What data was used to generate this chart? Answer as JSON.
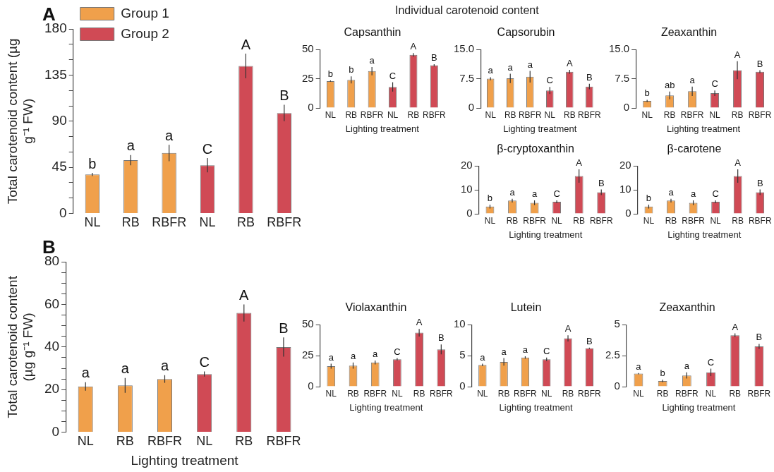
{
  "chart_data": [
    {
      "type": "bar",
      "title": "A",
      "ylabel": "Total carotenoid content (µg g⁻¹ FW)",
      "categories": [
        "NL",
        "RB",
        "RBFR",
        "NL",
        "RB",
        "RBFR"
      ],
      "ylim": [
        0,
        180
      ],
      "yticks": [
        0,
        {
          "value": 15,
          "label": null
        },
        {
          "value": 30,
          "label": null
        },
        45,
        {
          "value": 60,
          "label": null
        },
        {
          "value": 75,
          "label": null
        },
        90,
        {
          "value": 105,
          "label": null
        },
        {
          "value": 120,
          "label": null
        },
        135,
        {
          "value": 150,
          "label": null
        },
        {
          "value": 165,
          "label": null
        },
        180
      ],
      "grid": false,
      "legend": "top left",
      "series": [
        {
          "name": "Group 1",
          "color": "#f0a04b",
          "values": [
            38,
            52,
            59,
            null,
            null,
            null
          ],
          "errors": [
            1.5,
            5,
            8,
            null,
            null,
            null
          ],
          "value_labels": [
            "b",
            "a",
            "a",
            null,
            null,
            null
          ]
        },
        {
          "name": "Group 2",
          "color": "#d04a55",
          "values": [
            null,
            null,
            null,
            47,
            144,
            98
          ],
          "errors": [
            null,
            null,
            null,
            7,
            12,
            8
          ],
          "value_labels": [
            null,
            null,
            null,
            "C",
            "A",
            "B"
          ]
        }
      ]
    },
    {
      "type": "bar",
      "title": "Capsanthin",
      "xlabel": "Lighting treatment",
      "annotations": [
        "Individual carotenoid content"
      ],
      "categories": [
        "NL",
        "RB",
        "RBFR",
        "NL",
        "RB",
        "RBFR"
      ],
      "ylim": [
        0,
        50
      ],
      "yticks": [
        0,
        25,
        50
      ],
      "grid": false,
      "series": [
        {
          "color": "#f0a04b",
          "values": [
            23,
            24,
            31.5,
            null,
            null,
            null
          ],
          "errors": [
            0.5,
            3,
            3.5,
            null,
            null,
            null
          ],
          "value_labels": [
            "b",
            "b",
            "a",
            null,
            null,
            null
          ]
        },
        {
          "color": "#d04a55",
          "values": [
            null,
            null,
            null,
            18,
            45.5,
            36.5
          ],
          "errors": [
            null,
            null,
            null,
            4,
            1.5,
            1
          ],
          "value_labels": [
            null,
            null,
            null,
            "C",
            "A",
            "B"
          ]
        }
      ]
    },
    {
      "type": "bar",
      "title": "Capsorubin",
      "xlabel": "Lighting treatment",
      "categories": [
        "NL",
        "RB",
        "RBFR",
        "NL",
        "RB",
        "RBFR"
      ],
      "ylim": [
        0,
        15
      ],
      "yticks": [
        0,
        7.5,
        {
          "value": 15,
          "label": "15.0"
        }
      ],
      "grid": false,
      "series": [
        {
          "color": "#f0a04b",
          "values": [
            7.5,
            7.6,
            8,
            null,
            null,
            null
          ],
          "errors": [
            0.4,
            1.2,
            1.5,
            null,
            null,
            null
          ],
          "value_labels": [
            "a",
            "a",
            "a",
            null,
            null,
            null
          ]
        },
        {
          "color": "#d04a55",
          "values": [
            null,
            null,
            null,
            4.5,
            9.3,
            5.5
          ],
          "errors": [
            null,
            null,
            null,
            0.9,
            0.5,
            0.7
          ],
          "value_labels": [
            null,
            null,
            null,
            "C",
            "A",
            "B"
          ]
        }
      ]
    },
    {
      "type": "bar",
      "title": "Zeaxanthin",
      "xlabel": "Lighting treatment",
      "categories": [
        "NL",
        "RB",
        "RBFR",
        "NL",
        "RB",
        "RBFR"
      ],
      "ylim": [
        0,
        15
      ],
      "yticks": [
        0,
        7.5,
        {
          "value": 15,
          "label": "15.0"
        }
      ],
      "grid": false,
      "series": [
        {
          "color": "#f0a04b",
          "values": [
            1.8,
            3.2,
            4.3,
            null,
            null,
            null
          ],
          "errors": [
            0.3,
            1,
            1.2,
            null,
            null,
            null
          ],
          "value_labels": [
            "b",
            "ab",
            "a",
            null,
            null,
            null
          ]
        },
        {
          "color": "#d04a55",
          "values": [
            null,
            null,
            null,
            3.8,
            9.7,
            9.3
          ],
          "errors": [
            null,
            null,
            null,
            0.7,
            2.3,
            0.4
          ],
          "value_labels": [
            null,
            null,
            null,
            "C",
            "A",
            "B"
          ]
        }
      ]
    },
    {
      "type": "bar",
      "title": "β-cryptoxanthin",
      "xlabel": "Lighting treatment",
      "categories": [
        "NL",
        "RB",
        "RBFR",
        "NL",
        "RB",
        "RBFR"
      ],
      "ylim": [
        0,
        20
      ],
      "yticks": [
        0,
        10,
        20
      ],
      "grid": false,
      "series": [
        {
          "color": "#f0a04b",
          "values": [
            3,
            5.5,
            4.6,
            null,
            null,
            null
          ],
          "errors": [
            0.8,
            0.8,
            1,
            null,
            null,
            null
          ],
          "value_labels": [
            "b",
            "a",
            "a",
            null,
            null,
            null
          ]
        },
        {
          "color": "#d04a55",
          "values": [
            null,
            null,
            null,
            5,
            15.8,
            9
          ],
          "errors": [
            null,
            null,
            null,
            0.6,
            2.8,
            1.2
          ],
          "value_labels": [
            null,
            null,
            null,
            "C",
            "A",
            "B"
          ]
        }
      ]
    },
    {
      "type": "bar",
      "title": "β-carotene",
      "xlabel": "Lighting treatment",
      "categories": [
        "NL",
        "RB",
        "RBFR",
        "NL",
        "RB",
        "RBFR"
      ],
      "ylim": [
        0,
        20
      ],
      "yticks": [
        0,
        10,
        20
      ],
      "grid": false,
      "series": [
        {
          "color": "#f0a04b",
          "values": [
            3,
            5.5,
            4.6,
            null,
            null,
            null
          ],
          "errors": [
            0.8,
            0.8,
            1,
            null,
            null,
            null
          ],
          "value_labels": [
            "b",
            "a",
            "a",
            null,
            null,
            null
          ]
        },
        {
          "color": "#d04a55",
          "values": [
            null,
            null,
            null,
            5,
            15.8,
            9
          ],
          "errors": [
            null,
            null,
            null,
            0.6,
            2.8,
            1.2
          ],
          "value_labels": [
            null,
            null,
            null,
            "C",
            "A",
            "B"
          ]
        }
      ]
    },
    {
      "type": "bar",
      "title": "B",
      "xlabel": "Lighting treatment",
      "ylabel": "Total carotenoid content (µg g⁻¹ FW)",
      "categories": [
        "NL",
        "RB",
        "RBFR",
        "NL",
        "RB",
        "RBFR"
      ],
      "ylim": [
        0,
        80
      ],
      "yticks": [
        0,
        {
          "value": 5,
          "label": null
        },
        {
          "value": 10,
          "label": null
        },
        {
          "value": 15,
          "label": null
        },
        20,
        {
          "value": 25,
          "label": null
        },
        {
          "value": 30,
          "label": null
        },
        {
          "value": 35,
          "label": null
        },
        40,
        {
          "value": 45,
          "label": null
        },
        {
          "value": 50,
          "label": null
        },
        {
          "value": 55,
          "label": null
        },
        60,
        {
          "value": 65,
          "label": null
        },
        {
          "value": 70,
          "label": null
        },
        {
          "value": 75,
          "label": null
        },
        80
      ],
      "grid": false,
      "series": [
        {
          "color": "#f0a04b",
          "values": [
            21.5,
            22,
            25,
            null,
            null,
            null
          ],
          "errors": [
            2,
            3.5,
            1.8,
            null,
            null,
            null
          ],
          "value_labels": [
            "a",
            "a",
            "a",
            null,
            null,
            null
          ]
        },
        {
          "color": "#d04a55",
          "values": [
            null,
            null,
            null,
            27.3,
            56,
            40
          ],
          "errors": [
            null,
            null,
            null,
            1.2,
            4,
            4.5
          ],
          "value_labels": [
            null,
            null,
            null,
            "C",
            "A",
            "B"
          ]
        }
      ]
    },
    {
      "type": "bar",
      "title": "Violaxanthin",
      "xlabel": "Lighting treatment",
      "categories": [
        "NL",
        "RB",
        "RBFR",
        "NL",
        "RB",
        "RBFR"
      ],
      "ylim": [
        0,
        50
      ],
      "yticks": [
        0,
        25,
        50
      ],
      "grid": false,
      "series": [
        {
          "color": "#f0a04b",
          "values": [
            16.5,
            17,
            19.5,
            null,
            null,
            null
          ],
          "errors": [
            2,
            2.5,
            1.5,
            null,
            null,
            null
          ],
          "value_labels": [
            "a",
            "a",
            "a",
            null,
            null,
            null
          ]
        },
        {
          "color": "#d04a55",
          "values": [
            null,
            null,
            null,
            22,
            43.5,
            30
          ],
          "errors": [
            null,
            null,
            null,
            1,
            3,
            4
          ],
          "value_labels": [
            null,
            null,
            null,
            "C",
            "A",
            "B"
          ]
        }
      ]
    },
    {
      "type": "bar",
      "title": "Lutein",
      "xlabel": "Lighting treatment",
      "categories": [
        "NL",
        "RB",
        "RBFR",
        "NL",
        "RB",
        "RBFR"
      ],
      "ylim": [
        0,
        10
      ],
      "yticks": [
        0,
        5,
        10
      ],
      "grid": false,
      "series": [
        {
          "color": "#f0a04b",
          "values": [
            3.5,
            4,
            4.7,
            null,
            null,
            null
          ],
          "errors": [
            0.2,
            0.6,
            0.2,
            null,
            null,
            null
          ],
          "value_labels": [
            "a",
            "a",
            "a",
            null,
            null,
            null
          ]
        },
        {
          "color": "#d04a55",
          "values": [
            null,
            null,
            null,
            4.4,
            7.8,
            6.2
          ],
          "errors": [
            null,
            null,
            null,
            0.3,
            0.5,
            0.1
          ],
          "value_labels": [
            null,
            null,
            null,
            "C",
            "A",
            "B"
          ]
        }
      ]
    },
    {
      "type": "bar",
      "title": "Zeaxanthin",
      "xlabel": "Lighting treatment",
      "categories": [
        "NL",
        "RB",
        "RBFR",
        "NL",
        "RB",
        "RBFR"
      ],
      "ylim": [
        0,
        5
      ],
      "yticks": [
        0,
        2.5,
        5
      ],
      "grid": false,
      "series": [
        {
          "color": "#f0a04b",
          "values": [
            1.05,
            0.45,
            0.9,
            null,
            null,
            null
          ],
          "errors": [
            0.05,
            0.1,
            0.25,
            null,
            null,
            null
          ],
          "value_labels": [
            "a",
            "b",
            "a",
            null,
            null,
            null
          ]
        },
        {
          "color": "#d04a55",
          "values": [
            null,
            null,
            null,
            1.15,
            4.15,
            3.25
          ],
          "errors": [
            null,
            null,
            null,
            0.3,
            0.15,
            0.2
          ],
          "value_labels": [
            null,
            null,
            null,
            "C",
            "A",
            "B"
          ]
        }
      ]
    }
  ]
}
